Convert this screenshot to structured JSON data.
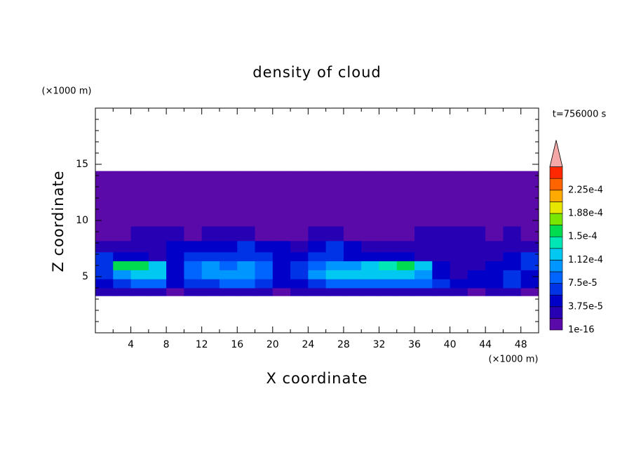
{
  "chart_data": {
    "type": "contour",
    "title": "density of cloud",
    "time_label": "t=756000 s",
    "xlabel": "X coordinate",
    "ylabel": "Z coordinate",
    "xunit": "(×1000 m)",
    "yunit": "(×1000 m)",
    "xlim": [
      0,
      50
    ],
    "ylim": [
      0,
      20
    ],
    "xticks": [
      4,
      8,
      12,
      16,
      20,
      24,
      28,
      32,
      36,
      40,
      44,
      48
    ],
    "xminor": [
      2,
      6,
      10,
      14,
      18,
      22,
      26,
      30,
      34,
      38,
      42,
      46,
      50
    ],
    "yticks": [
      5,
      10,
      15
    ],
    "yminor": [
      1,
      2,
      3,
      4,
      6,
      7,
      8,
      9,
      11,
      12,
      13,
      14,
      16,
      17,
      18,
      19
    ],
    "xbins": [
      0,
      2,
      4,
      6,
      8,
      10,
      12,
      14,
      16,
      18,
      20,
      22,
      24,
      26,
      28,
      30,
      32,
      34,
      36,
      38,
      40,
      42,
      44,
      46,
      48,
      50
    ],
    "zbins": [
      3.3,
      4,
      4.8,
      5.6,
      6.4,
      7.2,
      8.2,
      9.5,
      12,
      14.4
    ],
    "values": [
      [
        2e-05,
        2e-05,
        2.5e-05,
        2.5e-05,
        1e-06,
        2e-05,
        2e-05,
        2e-05,
        2e-05,
        2e-05,
        1e-06,
        2e-05,
        2e-05,
        2e-05,
        2e-05,
        2e-05,
        2e-05,
        2e-05,
        2e-05,
        2e-05,
        2e-05,
        1e-06,
        2e-05,
        2e-05,
        1e-06
      ],
      [
        5e-05,
        6e-05,
        8e-05,
        8e-05,
        4e-05,
        6e-05,
        7e-05,
        8e-05,
        8e-05,
        7e-05,
        4e-05,
        5e-05,
        7e-05,
        8e-05,
        8e-05,
        8e-05,
        9e-05,
        9e-05,
        8e-05,
        6e-05,
        4e-05,
        4e-05,
        5e-05,
        6e-05,
        4e-05
      ],
      [
        7e-05,
        0.00011,
        0.00013,
        0.00012,
        5e-05,
        8e-05,
        0.0001,
        0.0001,
        0.00011,
        9e-05,
        5e-05,
        7e-05,
        0.0001,
        0.00012,
        0.00012,
        0.00013,
        0.00013,
        0.00012,
        0.0001,
        5e-05,
        3e-05,
        4e-05,
        5e-05,
        6e-05,
        5e-05
      ],
      [
        6e-05,
        0.00015,
        0.00016,
        0.00013,
        5e-05,
        8e-05,
        0.0001,
        9e-05,
        0.0001,
        8e-05,
        5e-05,
        6e-05,
        9e-05,
        0.0001,
        0.00011,
        0.00013,
        0.00014,
        0.00015,
        0.00012,
        4e-05,
        2e-05,
        3e-05,
        4e-05,
        5e-05,
        6e-05
      ],
      [
        7e-05,
        5e-05,
        4e-05,
        3e-05,
        4e-05,
        6e-05,
        7e-05,
        6e-05,
        7e-05,
        6e-05,
        5e-05,
        4e-05,
        6e-05,
        6e-05,
        5e-05,
        5e-05,
        4e-05,
        4e-05,
        3e-05,
        3e-05,
        2e-05,
        2e-05,
        3e-05,
        4e-05,
        6e-05
      ],
      [
        2e-05,
        2e-05,
        3e-05,
        3e-05,
        4e-05,
        5e-05,
        5e-05,
        4e-05,
        6e-05,
        5e-05,
        4e-05,
        3e-05,
        5e-05,
        6e-05,
        4e-05,
        3e-05,
        3e-05,
        2e-05,
        2e-05,
        2e-05,
        2e-05,
        2e-05,
        2e-05,
        2e-05,
        2e-05
      ],
      [
        1e-06,
        1e-06,
        2e-05,
        2e-05,
        2e-05,
        1e-06,
        2e-05,
        2e-05,
        2e-05,
        1e-06,
        1e-06,
        1e-06,
        2e-05,
        2e-05,
        1e-06,
        1e-06,
        1e-06,
        1e-06,
        2e-05,
        2e-05,
        2e-05,
        2e-05,
        1e-06,
        2e-05,
        1e-06
      ],
      [
        1e-06,
        1e-06,
        1e-06,
        1e-06,
        1e-06,
        1e-06,
        1e-06,
        1e-06,
        1e-06,
        1e-06,
        1e-06,
        1e-06,
        1e-06,
        1e-06,
        1e-06,
        1e-06,
        1e-06,
        1e-06,
        1e-06,
        1e-06,
        1e-06,
        1e-06,
        1e-06,
        1e-06,
        1e-06
      ],
      [
        1e-06,
        1e-06,
        1e-06,
        1e-06,
        1e-06,
        1e-06,
        1e-06,
        1e-06,
        1e-06,
        1e-06,
        1e-06,
        1e-06,
        1e-06,
        1e-06,
        1e-06,
        1e-06,
        1e-06,
        1e-06,
        1e-06,
        1e-06,
        1e-06,
        1e-06,
        1e-06,
        1e-06,
        1e-06
      ]
    ],
    "levels": [
      {
        "value": 1e-16,
        "label": "1e-16"
      },
      1.875e-05,
      {
        "value": 3.75e-05,
        "label": "3.75e-5"
      },
      5.625e-05,
      {
        "value": 7.5e-05,
        "label": "7.5e-5"
      },
      9.375e-05,
      {
        "value": 0.0001125,
        "label": "1.12e-4"
      },
      0.00013125,
      {
        "value": 0.00015,
        "label": "1.5e-4"
      },
      0.00016875,
      {
        "value": 0.0001875,
        "label": "1.88e-4"
      },
      0.00020625,
      {
        "value": 0.000225,
        "label": "2.25e-4"
      },
      0.00024375
    ],
    "colors": [
      "#5a0aa8",
      "#2800b4",
      "#0000c8",
      "#0032e6",
      "#0064ff",
      "#0096ff",
      "#00c8f0",
      "#00e6b4",
      "#00dc50",
      "#78e600",
      "#e6e600",
      "#ffaa00",
      "#ff6400",
      "#ff2800"
    ],
    "extend_color": "#f4a8a8"
  }
}
